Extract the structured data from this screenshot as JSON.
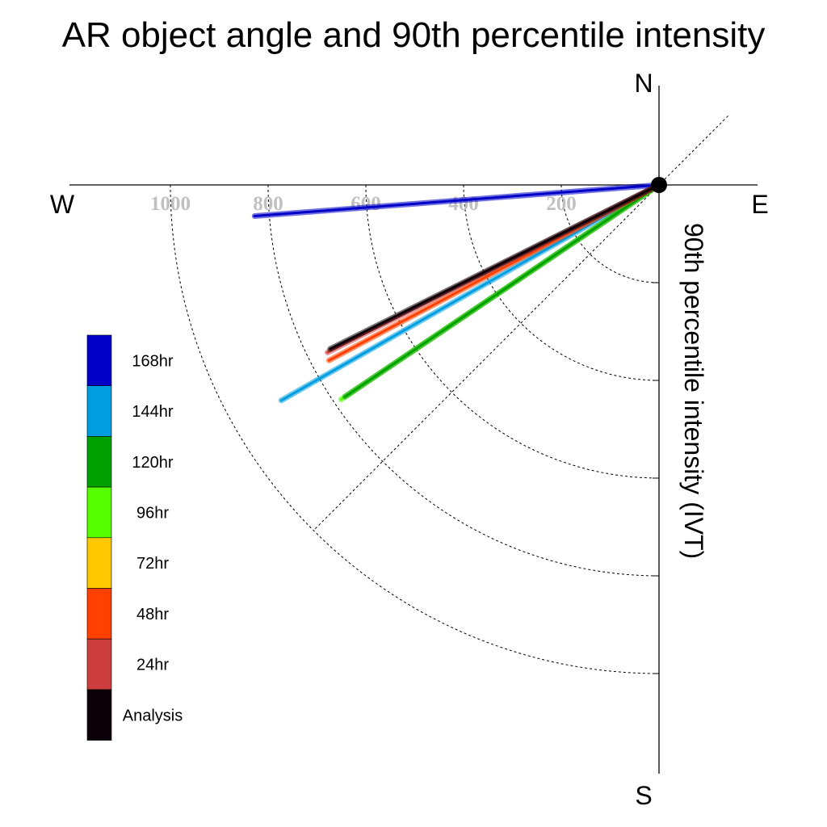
{
  "chart_data": {
    "type": "line",
    "title": "AR object angle and 90th percentile intensity",
    "ylabel": "90th percentile intensity (IVT)",
    "compass": {
      "north": "N",
      "south": "S",
      "east": "E",
      "west": "W"
    },
    "radial_ticks": [
      200,
      400,
      600,
      800,
      1000
    ],
    "radial_range": [
      0,
      1000
    ],
    "grid": true,
    "legend_placement": "left",
    "series": [
      {
        "name": "168hr",
        "color": "#0000c8",
        "angle_deg": 265.6,
        "intensity": 830
      },
      {
        "name": "144hr",
        "color": "#009ee0",
        "angle_deg": 240.3,
        "intensity": 890
      },
      {
        "name": "120hr",
        "color": "#00a000",
        "angle_deg": 236.0,
        "intensity": 775
      },
      {
        "name": "96hr",
        "color": "#55ff00",
        "angle_deg": 236.0,
        "intensity": 785
      },
      {
        "name": "72hr",
        "color": "#ffc800",
        "angle_deg": 0,
        "intensity": 0
      },
      {
        "name": "48hr",
        "color": "#ff4000",
        "angle_deg": 242.0,
        "intensity": 765
      },
      {
        "name": "24hr",
        "color": "#cc3d3d",
        "angle_deg": 243.2,
        "intensity": 760
      },
      {
        "name": "Analysis",
        "color": "#0c0008",
        "angle_deg": 243.5,
        "intensity": 752
      }
    ]
  }
}
